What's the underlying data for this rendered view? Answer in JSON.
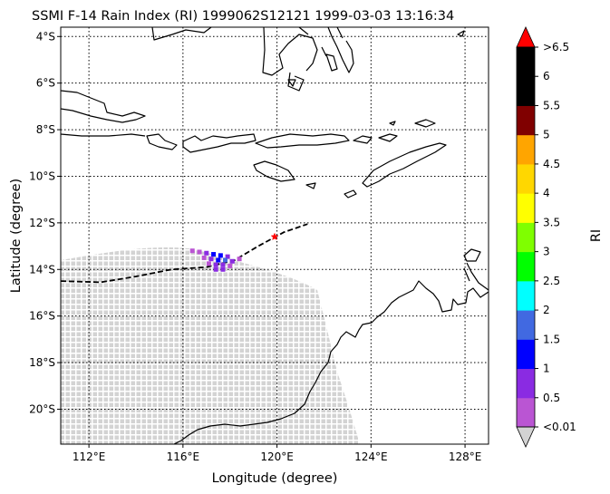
{
  "title": "SSMI F-14 Rain Index (RI) 1999062S12121 1999-03-03 13:16:34",
  "xlabel": "Longitude (degree)",
  "ylabel": "Latitude (degree)",
  "lon_range": [
    110.8,
    129.0
  ],
  "lat_range": [
    -21.5,
    -3.6
  ],
  "lon_ticks": [
    {
      "value": 112,
      "label": "112°E"
    },
    {
      "value": 116,
      "label": "116°E"
    },
    {
      "value": 120,
      "label": "120°E"
    },
    {
      "value": 124,
      "label": "124°E"
    },
    {
      "value": 128,
      "label": "128°E"
    }
  ],
  "lat_ticks": [
    {
      "value": -4,
      "label": "4°S"
    },
    {
      "value": -6,
      "label": "6°S"
    },
    {
      "value": -8,
      "label": "8°S"
    },
    {
      "value": -10,
      "label": "10°S"
    },
    {
      "value": -12,
      "label": "12°S"
    },
    {
      "value": -14,
      "label": "14°S"
    },
    {
      "value": -16,
      "label": "16°S"
    },
    {
      "value": -18,
      "label": "18°S"
    },
    {
      "value": -20,
      "label": "20°S"
    }
  ],
  "grid": "dotted",
  "colorbar": {
    "label": "RI",
    "bounds": [
      0.01,
      0.5,
      1,
      1.5,
      2,
      2.5,
      3,
      3.5,
      4,
      4.5,
      5,
      5.5,
      6,
      6.5
    ],
    "colors": [
      "#ba55d3",
      "#8a2be2",
      "#0000ff",
      "#4169e1",
      "#00ffff",
      "#00ff00",
      "#7fff00",
      "#ffff00",
      "#ffd700",
      "#ffa500",
      "#800000",
      "#000000",
      "#000000"
    ],
    "over_color": "#ff0000",
    "under_color": "#d3d3d3",
    "tick_labels": [
      "<0.01",
      "0.5",
      "1",
      "1.5",
      "2",
      "2.5",
      "3",
      "3.5",
      "4",
      "4.5",
      "5",
      "5.5",
      "6",
      ">6.5"
    ]
  },
  "storm_track": {
    "style": "dashed",
    "lon": [
      110.8,
      112.5,
      114.0,
      115.5,
      117.0,
      118.2,
      119.2,
      120.3,
      121.3
    ],
    "lat": [
      -14.5,
      -14.55,
      -14.3,
      -14.0,
      -13.9,
      -13.6,
      -13.0,
      -12.4,
      -12.05
    ]
  },
  "storm_center": {
    "lon": 119.9,
    "lat": -12.6,
    "marker_color": "#ff0000"
  },
  "rain_pixels": [
    {
      "lon": 116.4,
      "lat": -13.2,
      "value": 0.3
    },
    {
      "lon": 116.7,
      "lat": -13.25,
      "value": 0.3
    },
    {
      "lon": 117.0,
      "lat": -13.3,
      "value": 0.7
    },
    {
      "lon": 117.3,
      "lat": -13.35,
      "value": 1.2
    },
    {
      "lon": 117.6,
      "lat": -13.4,
      "value": 1.2
    },
    {
      "lon": 117.9,
      "lat": -13.45,
      "value": 0.7
    },
    {
      "lon": 116.9,
      "lat": -13.5,
      "value": 0.3
    },
    {
      "lon": 117.2,
      "lat": -13.55,
      "value": 0.7
    },
    {
      "lon": 117.5,
      "lat": -13.6,
      "value": 1.2
    },
    {
      "lon": 117.8,
      "lat": -13.6,
      "value": 1.7
    },
    {
      "lon": 118.1,
      "lat": -13.65,
      "value": 0.7
    },
    {
      "lon": 118.4,
      "lat": -13.55,
      "value": 0.3
    },
    {
      "lon": 117.1,
      "lat": -13.75,
      "value": 0.3
    },
    {
      "lon": 117.4,
      "lat": -13.8,
      "value": 0.7
    },
    {
      "lon": 117.7,
      "lat": -13.8,
      "value": 0.7
    },
    {
      "lon": 118.0,
      "lat": -13.85,
      "value": 0.3
    },
    {
      "lon": 117.4,
      "lat": -14.0,
      "value": 0.7
    },
    {
      "lon": 117.7,
      "lat": -14.0,
      "value": 0.7
    }
  ]
}
